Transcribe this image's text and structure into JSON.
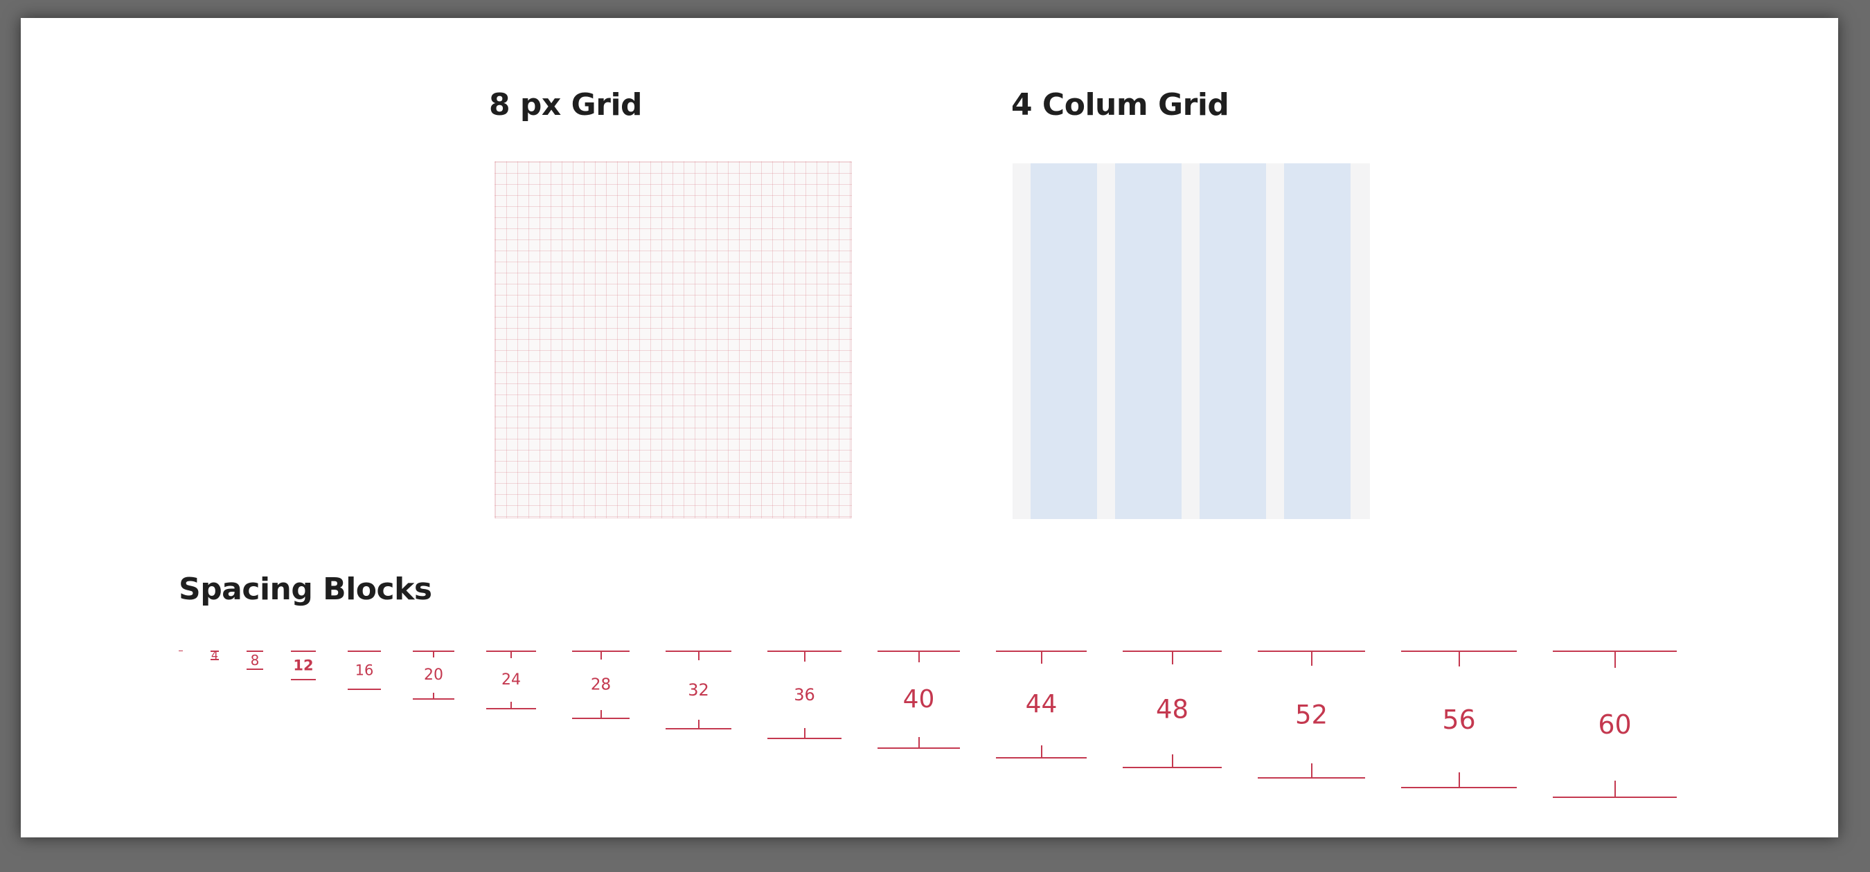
{
  "sections": {
    "grid_title": "8 px Grid",
    "column_title": "4 Colum Grid",
    "spacing_title": "Spacing Blocks"
  },
  "column_grid": {
    "column_count": 4
  },
  "colors": {
    "accent_red": "#c4384f",
    "column_fill": "#dce6f3",
    "column_gutter": "#f4f4f5",
    "grid_line": "#d67882",
    "heading": "#1f1f1f",
    "frame": "#6b6b6b"
  },
  "spacing_blocks": [
    {
      "label": "",
      "size": 2
    },
    {
      "label": "4",
      "size": 4
    },
    {
      "label": "8",
      "size": 8
    },
    {
      "label": "12",
      "size": 12
    },
    {
      "label": "16",
      "size": 16
    },
    {
      "label": "20",
      "size": 20
    },
    {
      "label": "24",
      "size": 24
    },
    {
      "label": "28",
      "size": 28
    },
    {
      "label": "32",
      "size": 32
    },
    {
      "label": "36",
      "size": 36
    },
    {
      "label": "40",
      "size": 40
    },
    {
      "label": "44",
      "size": 44
    },
    {
      "label": "48",
      "size": 48
    },
    {
      "label": "52",
      "size": 52
    },
    {
      "label": "56",
      "size": 56
    },
    {
      "label": "60",
      "size": 60
    }
  ]
}
